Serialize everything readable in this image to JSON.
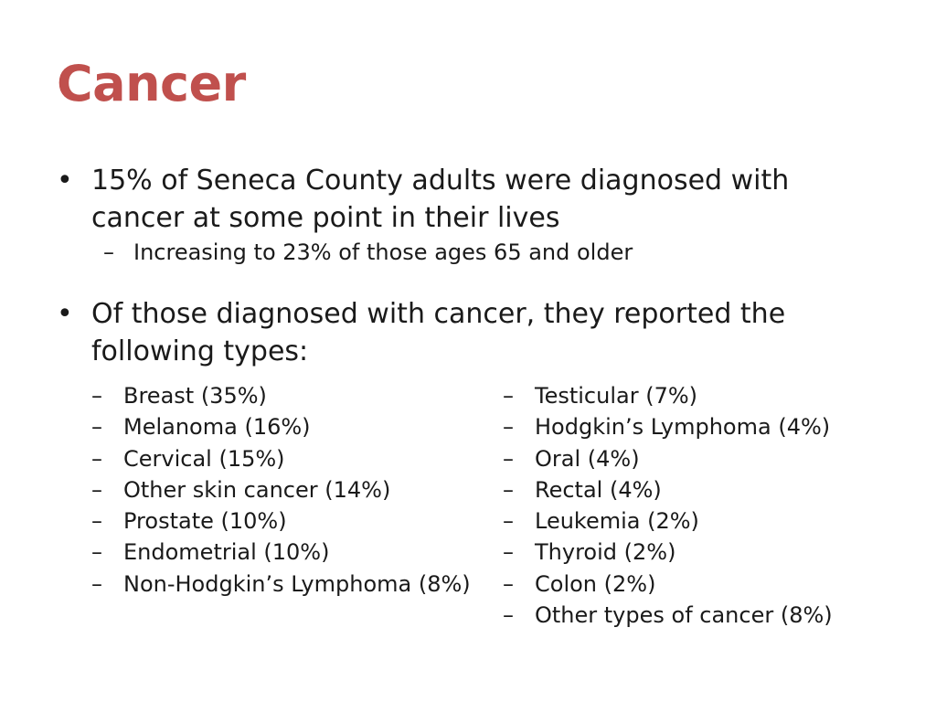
{
  "slide": {
    "title": "Cancer",
    "bullets": [
      {
        "marker": "•",
        "text": "15% of Seneca County adults were diagnosed with cancer at some point in their lives",
        "sub": {
          "marker": "–",
          "text": "Increasing to 23% of those ages 65 and older"
        }
      },
      {
        "marker": "•",
        "text": "Of those diagnosed with cancer, they reported the following types:"
      }
    ],
    "cancer_types_left": [
      "Breast (35%)",
      "Melanoma (16%)",
      "Cervical (15%)",
      "Other skin cancer (14%)",
      "Prostate (10%)",
      "Endometrial (10%)",
      "Non-Hodgkin’s Lymphoma (8%)"
    ],
    "cancer_types_right": [
      "Testicular (7%)",
      "Hodgkin’s Lymphoma (4%)",
      "Oral (4%)",
      "Rectal (4%)",
      "Leukemia (2%)",
      "Thyroid (2%)",
      "Colon (2%)",
      "Other types of cancer (8%)"
    ],
    "dash_marker": "–",
    "colors": {
      "title": "#c0504d",
      "text": "#1a1a1a",
      "background": "#ffffff"
    }
  }
}
